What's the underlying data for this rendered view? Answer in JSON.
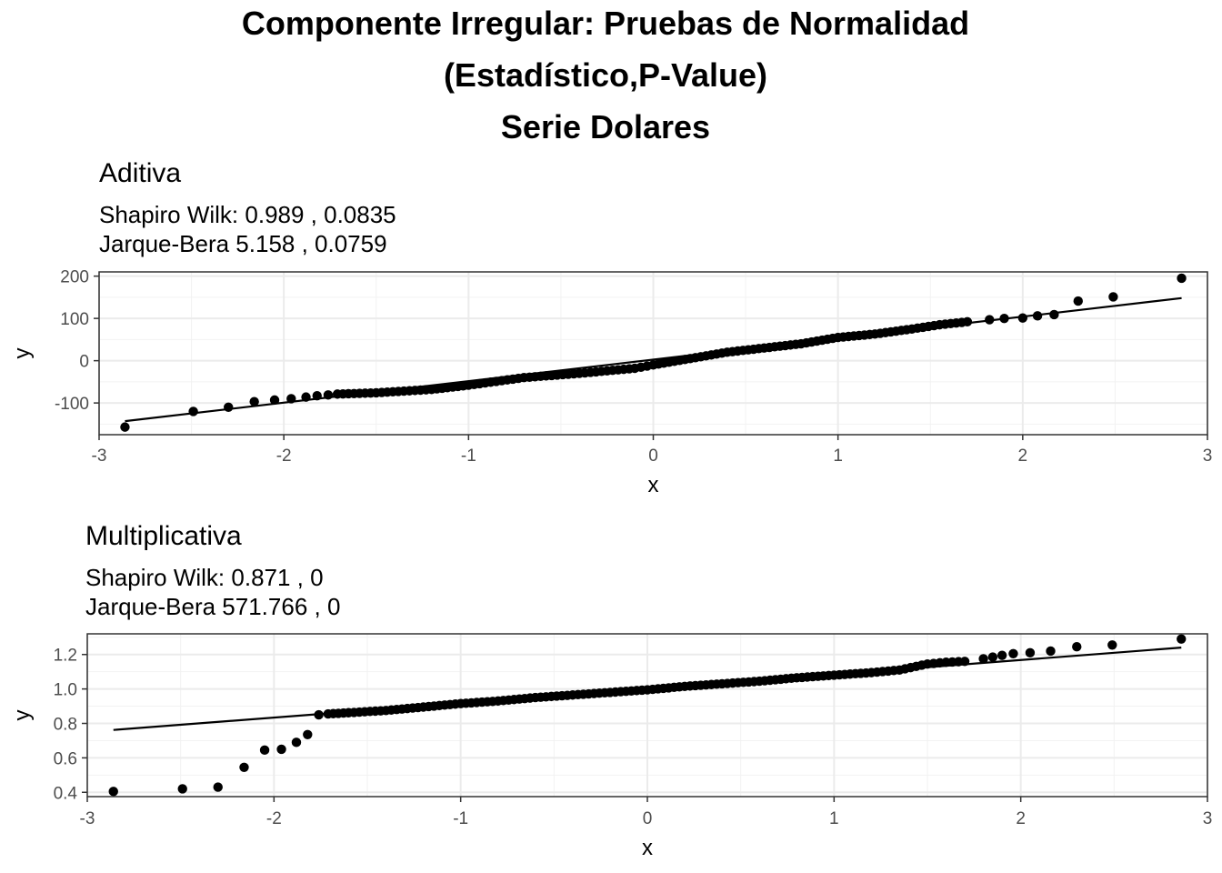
{
  "title": {
    "line1": "Componente Irregular: Pruebas de Normalidad",
    "line2": "(Estadístico,P-Value)",
    "line3": "Serie  Dolares"
  },
  "chart_data": [
    {
      "type": "scatter",
      "title": "Aditiva",
      "subtitle_lines": [
        "Shapiro Wilk: 0.989 , 0.0835",
        "Jarque-Bera 5.158 , 0.0759"
      ],
      "xlabel": "x",
      "ylabel": "y",
      "xlim": [
        -3.0,
        3.0
      ],
      "ylim": [
        -175,
        210
      ],
      "x_ticks": [
        -3,
        -2,
        -1,
        0,
        1,
        2,
        3
      ],
      "x_tick_labels": [
        "-3",
        "-2",
        "-1",
        "0",
        "1",
        "2",
        "3"
      ],
      "y_ticks": [
        -100,
        0,
        100,
        200
      ],
      "y_tick_labels": [
        "-100",
        "0",
        "100",
        "200"
      ],
      "grid": true,
      "qq_line": {
        "x": [
          -2.86,
          2.86
        ],
        "y": [
          -143,
          148
        ]
      },
      "points": {
        "x": [
          -2.86,
          -2.49,
          -2.3,
          -2.16,
          -2.05,
          -1.96,
          -1.88,
          -1.82,
          -1.76,
          -1.71,
          -1.5,
          -1.2,
          -1.0,
          -0.7,
          -0.4,
          -0.1,
          0.0,
          0.2,
          0.4,
          0.6,
          0.8,
          1.0,
          1.2,
          1.4,
          1.55,
          1.7,
          1.82,
          1.9,
          2.0,
          2.08,
          2.17,
          2.3,
          2.49,
          2.86
        ],
        "y": [
          -157,
          -120,
          -110,
          -97,
          -93,
          -90,
          -86,
          -83,
          -81,
          -79,
          -76,
          -68,
          -58,
          -40,
          -30,
          -18,
          -10,
          5,
          20,
          30,
          40,
          55,
          63,
          75,
          85,
          92,
          97,
          100,
          101,
          106,
          109,
          141,
          151,
          195
        ]
      }
    },
    {
      "type": "scatter",
      "title": "Multiplicativa",
      "subtitle_lines": [
        "Shapiro Wilk: 0.871 , 0",
        "Jarque-Bera 571.766 , 0"
      ],
      "xlabel": "x",
      "ylabel": "y",
      "xlim": [
        -3.0,
        3.0
      ],
      "ylim": [
        0.375,
        1.32
      ],
      "x_ticks": [
        -3,
        -2,
        -1,
        0,
        1,
        2,
        3
      ],
      "x_tick_labels": [
        "-3",
        "-2",
        "-1",
        "0",
        "1",
        "2",
        "3"
      ],
      "y_ticks": [
        0.4,
        0.6,
        0.8,
        1.0,
        1.2
      ],
      "y_tick_labels": [
        "0.4",
        "0.6",
        "0.8",
        "1.0",
        "1.2"
      ],
      "grid": true,
      "qq_line": {
        "x": [
          -2.86,
          2.86
        ],
        "y": [
          0.762,
          1.24
        ]
      },
      "points": {
        "x": [
          -2.86,
          -2.49,
          -2.3,
          -2.16,
          -2.05,
          -1.96,
          -1.88,
          -1.82,
          -1.76,
          -1.71,
          -1.6,
          -1.4,
          -1.2,
          -1.0,
          -0.8,
          -0.6,
          -0.4,
          -0.2,
          0.0,
          0.2,
          0.4,
          0.6,
          0.8,
          1.0,
          1.2,
          1.35,
          1.5,
          1.6,
          1.7,
          1.8,
          1.85,
          1.9,
          1.96,
          2.05,
          2.16,
          2.3,
          2.49,
          2.86
        ],
        "y": [
          0.405,
          0.42,
          0.43,
          0.545,
          0.645,
          0.65,
          0.69,
          0.735,
          0.85,
          0.855,
          0.862,
          0.875,
          0.895,
          0.915,
          0.93,
          0.95,
          0.965,
          0.98,
          0.995,
          1.015,
          1.03,
          1.045,
          1.065,
          1.08,
          1.095,
          1.11,
          1.145,
          1.155,
          1.16,
          1.175,
          1.185,
          1.195,
          1.205,
          1.21,
          1.22,
          1.245,
          1.255,
          1.29
        ]
      }
    }
  ]
}
